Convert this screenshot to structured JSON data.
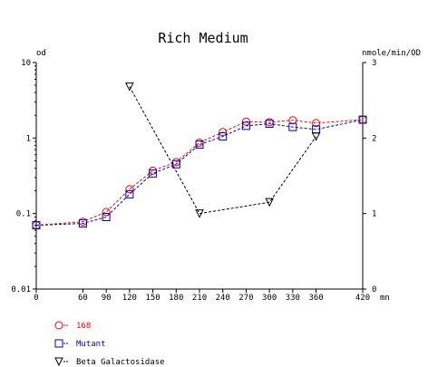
{
  "chart_data": {
    "type": "line",
    "title": "Rich Medium",
    "xlabel": "mn",
    "ylabel": "od",
    "y2label": "nmole/min/OD",
    "xlim": [
      0,
      420
    ],
    "ylim": [
      0.01,
      10
    ],
    "y2lim": [
      0,
      3
    ],
    "yscale": "log",
    "x_ticks": [
      0,
      60,
      90,
      120,
      150,
      180,
      210,
      240,
      270,
      300,
      330,
      360,
      420
    ],
    "y_ticks": [
      "0.01",
      "0.1",
      "1",
      "10"
    ],
    "y2_ticks": [
      "0",
      "1",
      "2",
      "3"
    ],
    "grid": false,
    "legend_position": "bottom-left",
    "series": [
      {
        "name": "168",
        "axis": "left",
        "color": "#ff0000",
        "marker": "circle",
        "line": "dashed",
        "x": [
          0,
          60,
          90,
          120,
          150,
          180,
          210,
          240,
          270,
          300,
          330,
          360,
          420
        ],
        "y": [
          0.07,
          0.078,
          0.105,
          0.21,
          0.37,
          0.48,
          0.87,
          1.2,
          1.65,
          1.62,
          1.72,
          1.58,
          1.75
        ]
      },
      {
        "name": "Mutant",
        "axis": "left",
        "color": "#0000cc",
        "marker": "square",
        "line": "dashed",
        "x": [
          0,
          60,
          90,
          120,
          150,
          180,
          210,
          240,
          270,
          300,
          330,
          360,
          420
        ],
        "y": [
          0.07,
          0.074,
          0.09,
          0.18,
          0.34,
          0.45,
          0.82,
          1.05,
          1.45,
          1.55,
          1.4,
          1.3,
          1.75
        ]
      },
      {
        "name": "Beta Galactosidase",
        "axis": "right",
        "color": "#000000",
        "marker": "triangle-down",
        "line": "dashed",
        "x": [
          120,
          210,
          300,
          360
        ],
        "y": [
          2.68,
          1.0,
          1.15,
          2.02
        ]
      }
    ]
  }
}
